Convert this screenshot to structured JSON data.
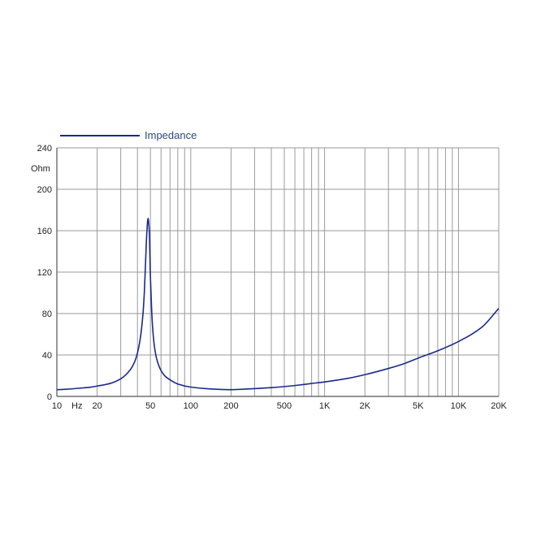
{
  "chart_data": {
    "type": "line",
    "title": "",
    "xlabel": "",
    "ylabel": "",
    "x_scale": "log",
    "xlim": [
      10,
      20000
    ],
    "ylim": [
      0,
      240
    ],
    "grid": true,
    "legend_position": "top-left",
    "y_unit_label": "Ohm",
    "x_unit_label": "Hz",
    "y_ticks": [
      0,
      40,
      80,
      120,
      160,
      200,
      240
    ],
    "y_tick_labels": [
      "0",
      "40",
      "80",
      "120",
      "160",
      "200",
      "240"
    ],
    "x_tick_labels": [
      {
        "x": 10,
        "label": "10"
      },
      {
        "x": 20,
        "label": "20"
      },
      {
        "x": 50,
        "label": "50"
      },
      {
        "x": 100,
        "label": "100"
      },
      {
        "x": 200,
        "label": "200"
      },
      {
        "x": 500,
        "label": "500"
      },
      {
        "x": 1000,
        "label": "1K"
      },
      {
        "x": 2000,
        "label": "2K"
      },
      {
        "x": 5000,
        "label": "5K"
      },
      {
        "x": 10000,
        "label": "10K"
      },
      {
        "x": 20000,
        "label": "20K"
      }
    ],
    "x_gridlines": [
      10,
      20,
      30,
      40,
      50,
      60,
      70,
      80,
      90,
      100,
      200,
      300,
      400,
      500,
      600,
      700,
      800,
      900,
      1000,
      2000,
      3000,
      4000,
      5000,
      6000,
      7000,
      8000,
      9000,
      10000,
      20000
    ],
    "colors": {
      "line": "#1a2a8a",
      "legend_text": "#2c4a7c",
      "grid": "#9a9a9a",
      "axis": "#555555"
    },
    "series": [
      {
        "name": "Impedance",
        "x": [
          10,
          12,
          15,
          18,
          20,
          25,
          30,
          35,
          38,
          40,
          42,
          44,
          45,
          46,
          47,
          48,
          49,
          50,
          51,
          52,
          54,
          56,
          60,
          65,
          70,
          80,
          100,
          130,
          150,
          200,
          250,
          300,
          400,
          500,
          600,
          700,
          800,
          1000,
          1500,
          2000,
          3000,
          4000,
          5000,
          7000,
          10000,
          15000,
          20000
        ],
        "y": [
          6.5,
          7,
          8,
          9,
          10,
          12.5,
          17,
          25,
          33,
          42,
          56,
          80,
          100,
          130,
          158,
          172,
          160,
          115,
          85,
          65,
          45,
          35,
          25,
          19,
          16,
          12,
          9,
          7.5,
          7,
          6.5,
          7,
          7.5,
          8.5,
          9.5,
          10.5,
          11.5,
          12.5,
          14,
          17.5,
          21,
          27,
          32,
          37,
          44,
          53,
          67,
          85
        ]
      }
    ]
  }
}
